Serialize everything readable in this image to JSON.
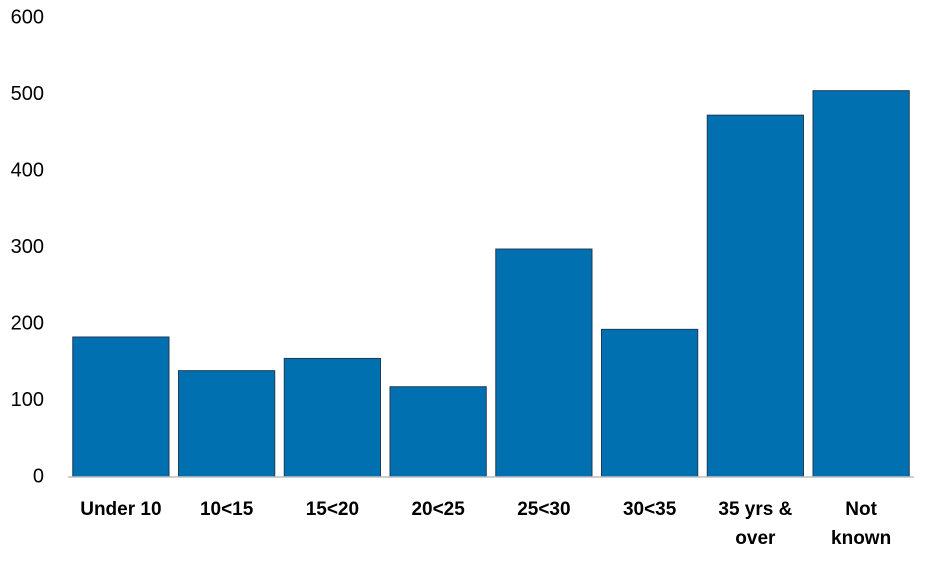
{
  "chart_data": {
    "type": "bar",
    "categories": [
      "Under 10",
      "10<15",
      "15<20",
      "20<25",
      "25<30",
      "30<35",
      "35 yrs & over",
      "Not known"
    ],
    "values": [
      183,
      139,
      155,
      118,
      298,
      193,
      473,
      505
    ],
    "color": "#0070b0",
    "ylim": [
      0,
      600
    ],
    "yticks": [
      0,
      100,
      200,
      300,
      400,
      500,
      600
    ],
    "grid": false
  }
}
